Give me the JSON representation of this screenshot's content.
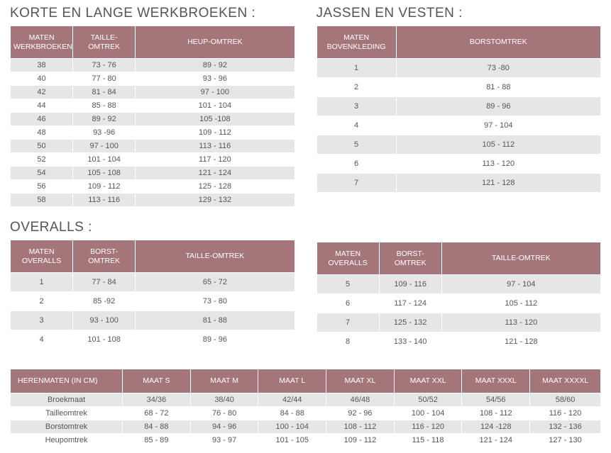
{
  "werkbroeken": {
    "title": "KORTE EN LANGE WERKBROEKEN :",
    "headers": [
      "MATEN WERKBROEKEN",
      "TAILLE-OMTREK",
      "HEUP-OMTREK"
    ],
    "rows": [
      [
        "38",
        "73 - 76",
        "89 - 92"
      ],
      [
        "40",
        "77 - 80",
        "93 - 96"
      ],
      [
        "42",
        "81 - 84",
        "97 - 100"
      ],
      [
        "44",
        "85 - 88",
        "101 - 104"
      ],
      [
        "46",
        "89 - 92",
        "105 -108"
      ],
      [
        "48",
        "93 -96",
        "109 - 112"
      ],
      [
        "50",
        "97 - 100",
        "113 - 116"
      ],
      [
        "52",
        "101 - 104",
        "117 - 120"
      ],
      [
        "54",
        "105 - 108",
        "121 - 124"
      ],
      [
        "56",
        "109 - 112",
        "125 - 128"
      ],
      [
        "58",
        "113 - 116",
        "129 - 132"
      ]
    ]
  },
  "jassen": {
    "title": "JASSEN EN VESTEN :",
    "headers": [
      "MATEN BOVENKLEDING",
      "BORSTOMTREK"
    ],
    "rows": [
      [
        "1",
        "73 -80"
      ],
      [
        "2",
        "81 - 88"
      ],
      [
        "3",
        "89 - 96"
      ],
      [
        "4",
        "97 - 104"
      ],
      [
        "5",
        "105 - 112"
      ],
      [
        "6",
        "113 - 120"
      ],
      [
        "7",
        "121 - 128"
      ]
    ]
  },
  "overalls": {
    "title": "OVERALLS :",
    "headers": [
      "MATEN OVERALLS",
      "BORST-OMTREK",
      "TAILLE-OMTREK"
    ],
    "left_rows": [
      [
        "1",
        "77 - 84",
        "65 - 72"
      ],
      [
        "2",
        "85 -92",
        "73 - 80"
      ],
      [
        "3",
        "93 - 100",
        "81 - 88"
      ],
      [
        "4",
        "101 - 108",
        "89 - 96"
      ]
    ],
    "right_rows": [
      [
        "5",
        "109 - 116",
        "97 - 104"
      ],
      [
        "6",
        "117 - 124",
        "105 - 112"
      ],
      [
        "7",
        "125 - 132",
        "113 - 120"
      ],
      [
        "8",
        "133 - 140",
        "121 - 128"
      ]
    ]
  },
  "herenmaten": {
    "headers": [
      "HERENMATEN (IN CM)",
      "MAAT S",
      "MAAT M",
      "MAAT L",
      "MAAT XL",
      "MAAT XXL",
      "MAAT XXXL",
      "MAAT XXXXL"
    ],
    "rows": [
      [
        "Broekmaat",
        "34/36",
        "38/40",
        "42/44",
        "46/48",
        "50/52",
        "54/56",
        "58/60"
      ],
      [
        "Tailleomtrek",
        "68 - 72",
        "76 - 80",
        "84 - 88",
        "92 - 96",
        "100 - 104",
        "108 - 112",
        "116 - 120"
      ],
      [
        "Borstomtrek",
        "84 - 88",
        "94 - 96",
        "100 - 104",
        "108 - 112",
        "116 - 120",
        "124 -128",
        "132 - 136"
      ],
      [
        "Heupomtrek",
        "85 - 89",
        "93 - 97",
        "101 - 105",
        "109 - 112",
        "115 - 118",
        "121 - 124",
        "127 - 130"
      ]
    ]
  },
  "style": {
    "header_bg": "#a57679",
    "header_text": "#ffffff",
    "row_stripe": "#e6e6e6",
    "page_bg": "#ffffff",
    "text_color": "#555555",
    "title_fontsize": 19,
    "cell_fontsize": 11,
    "header_fontsize": 10.5
  }
}
